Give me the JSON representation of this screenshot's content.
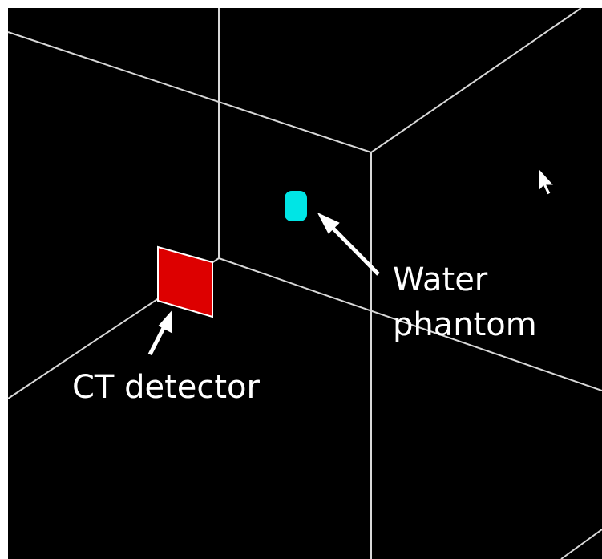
{
  "annotations": {
    "water_phantom": [
      "Water",
      "phantom"
    ],
    "ct_detector": "CT detector"
  }
}
